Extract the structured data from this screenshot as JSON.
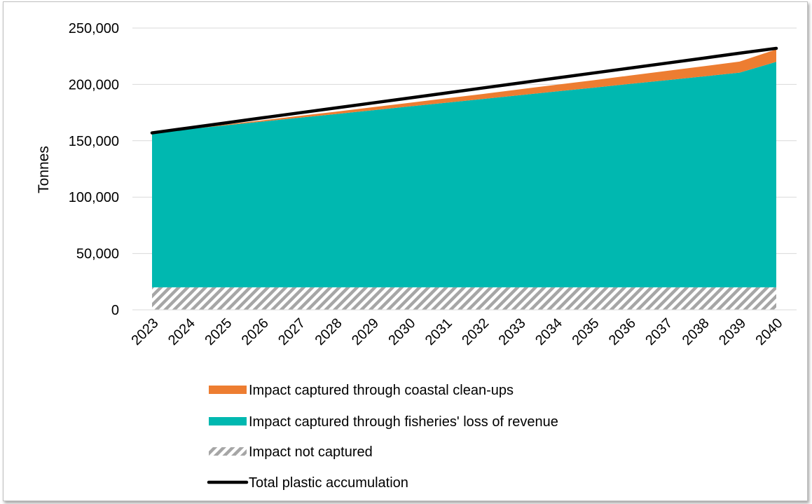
{
  "chart_data": {
    "type": "area",
    "ylabel": "Tonnes",
    "xlabel": "",
    "x": [
      "2023",
      "2024",
      "2025",
      "2026",
      "2027",
      "2028",
      "2029",
      "2030",
      "2031",
      "2032",
      "2033",
      "2034",
      "2035",
      "2036",
      "2037",
      "2038",
      "2039",
      "2040"
    ],
    "ylim": [
      0,
      250000
    ],
    "yticks": [
      0,
      50000,
      100000,
      150000,
      200000,
      250000
    ],
    "ytick_labels": [
      "0",
      "50,000",
      "100,000",
      "150,000",
      "200,000",
      "250,000"
    ],
    "grid": "horizontal",
    "legend_position": "bottom",
    "stacked": true,
    "series": [
      {
        "name": "Impact not captured",
        "kind": "area",
        "pattern": "hatched",
        "color": "#a6a6a6",
        "values": [
          20000,
          20000,
          20000,
          20000,
          20000,
          20000,
          20000,
          20000,
          20000,
          20000,
          20000,
          20000,
          20000,
          20000,
          20000,
          20000,
          20000,
          20000
        ]
      },
      {
        "name": "Impact captured through fisheries' loss of revenue",
        "kind": "area",
        "color": "#00b8b0",
        "values": [
          137000,
          140300,
          143700,
          147000,
          150400,
          153700,
          157000,
          160400,
          163700,
          167000,
          170400,
          173700,
          177000,
          180400,
          183700,
          187000,
          190400,
          200000
        ]
      },
      {
        "name": "Impact captured through coastal clean-ups",
        "kind": "area",
        "color": "#ed7d31",
        "values": [
          0,
          300,
          700,
          1100,
          1600,
          2100,
          2700,
          3200,
          3900,
          4500,
          5200,
          5900,
          6600,
          7400,
          8200,
          9000,
          9800,
          11000
        ]
      },
      {
        "name": "Total plastic accumulation",
        "kind": "line",
        "color": "#000000",
        "values": [
          157000,
          161400,
          165800,
          170300,
          174700,
          179100,
          183500,
          187900,
          192300,
          196800,
          201200,
          205600,
          210000,
          214400,
          218800,
          223200,
          227700,
          232000
        ]
      }
    ],
    "legend_order": [
      "Impact captured through coastal clean-ups",
      "Impact captured through fisheries' loss of revenue",
      "Impact not captured",
      "Total plastic accumulation"
    ]
  }
}
